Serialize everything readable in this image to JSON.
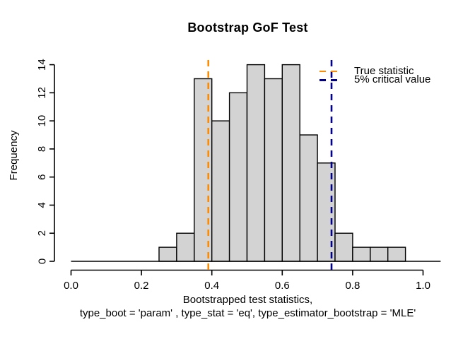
{
  "chart_data": {
    "type": "bar",
    "subtype": "histogram",
    "title": "Bootstrap GoF Test",
    "ylabel": "Frequency",
    "xlabel_lines": [
      "Bootstrapped test statistics,",
      "type_boot = 'param' , type_stat = 'eq', type_estimator_bootstrap = 'MLE'"
    ],
    "bins": {
      "start": 0.25,
      "width": 0.05,
      "counts": [
        1,
        2,
        13,
        10,
        12,
        14,
        13,
        14,
        9,
        7,
        2,
        1,
        1,
        1
      ]
    },
    "x_ticks": {
      "values": [
        0.0,
        0.2,
        0.4,
        0.6,
        0.8,
        1.0
      ],
      "labels": [
        "0.0",
        "0.2",
        "0.4",
        "0.6",
        "0.8",
        "1.0"
      ]
    },
    "y_ticks": {
      "values": [
        0,
        2,
        4,
        6,
        8,
        10,
        12,
        14
      ],
      "labels": [
        "0",
        "2",
        "4",
        "6",
        "8",
        "10",
        "12",
        "14"
      ]
    },
    "xlim": [
      0,
      1.05
    ],
    "ylim": [
      0,
      14
    ],
    "baseline_extent": [
      0,
      1.05
    ],
    "grid": false,
    "bar_fill": "#D3D3D3",
    "bar_stroke": "#000000",
    "axis_color": "#000000",
    "background": "#FFFFFF",
    "legend_position": "top-right",
    "vlines": [
      {
        "value": 0.39,
        "label": "True statistic",
        "color": "#FF8C00",
        "linestyle": "dashed"
      },
      {
        "value": 0.74,
        "label": "5% critical value",
        "color": "#00008B",
        "linestyle": "dashed"
      }
    ]
  }
}
